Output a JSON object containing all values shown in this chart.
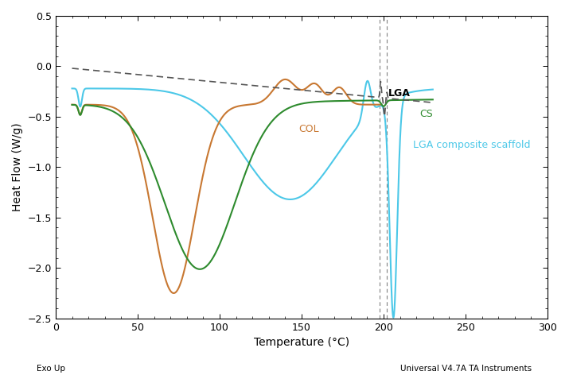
{
  "xlim": [
    0,
    300
  ],
  "ylim": [
    -2.5,
    0.5
  ],
  "xlabel": "Temperature (°C)",
  "ylabel": "Heat Flow (W/g)",
  "footnote_left": "Exo Up",
  "footnote_right": "Universal V4.7A TA Instruments",
  "label_LGA": "LGA",
  "label_CS": "CS",
  "label_COL": "COL",
  "label_composite": "LGA composite scaffold",
  "color_LGA": "#555555",
  "color_CS": "#2e8b2e",
  "color_COL": "#c87832",
  "color_composite": "#4cc8e8",
  "lw_main": 1.5,
  "lw_dashed": 1.2,
  "vline_color": "#888888",
  "vline1_x": 197.5,
  "vline2_x": 202.0
}
